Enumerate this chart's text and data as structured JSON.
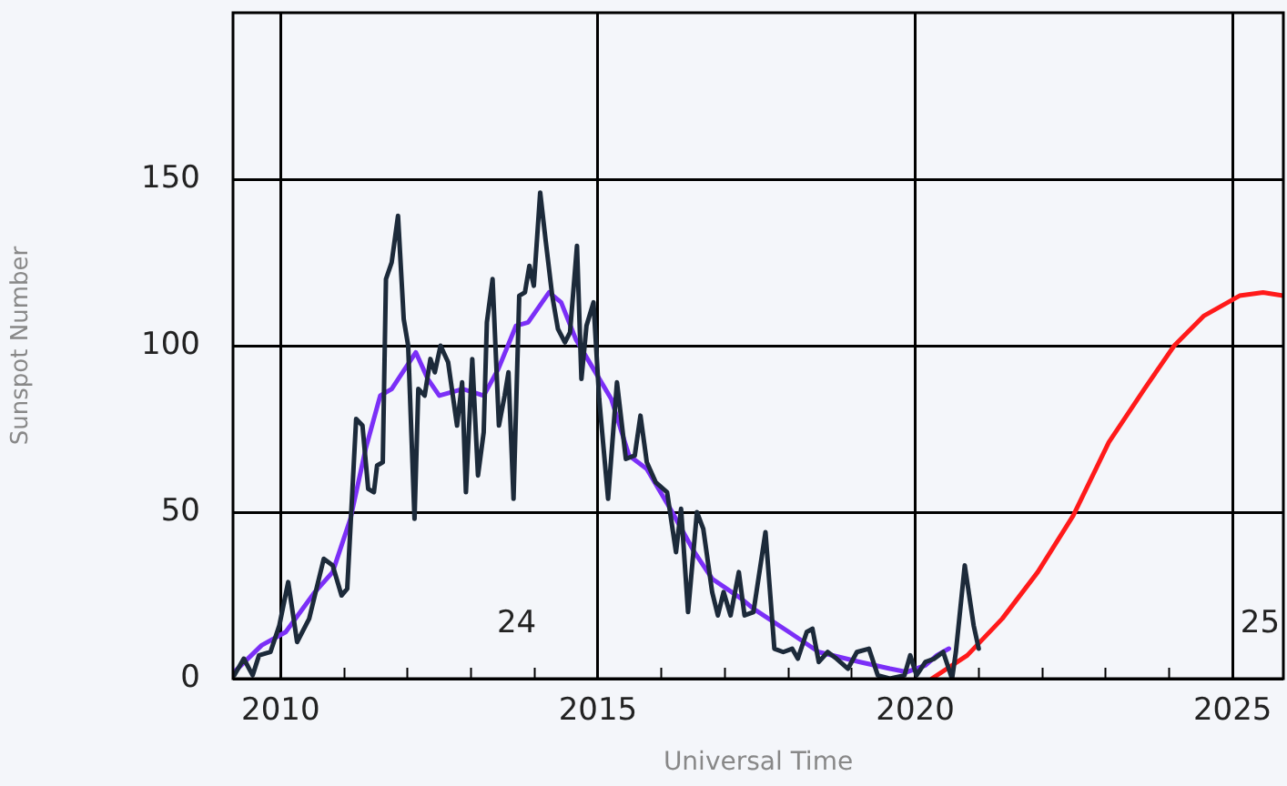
{
  "chart_data": {
    "type": "line",
    "xlabel": "Universal Time",
    "ylabel": "Sunspot Number",
    "xlim": [
      2009.25,
      2025.8
    ],
    "ylim": [
      0,
      200
    ],
    "xticks": [
      2010,
      {
        "value": 2011,
        "label": null
      },
      {
        "value": 2012,
        "label": null
      },
      {
        "value": 2013,
        "label": null
      },
      {
        "value": 2014,
        "label": null
      },
      2015,
      {
        "value": 2016,
        "label": null
      },
      {
        "value": 2017,
        "label": null
      },
      {
        "value": 2018,
        "label": null
      },
      {
        "value": 2019,
        "label": null
      },
      2020,
      {
        "value": 2021,
        "label": null
      },
      {
        "value": 2022,
        "label": null
      },
      {
        "value": 2023,
        "label": null
      },
      {
        "value": 2024,
        "label": null
      },
      2025
    ],
    "yticks": [
      0,
      50,
      100,
      150
    ],
    "grid": true,
    "marker": "none",
    "line_style": "solid",
    "annotations": [
      "24",
      "25"
    ],
    "series": [
      {
        "color": "#1c2a3a",
        "x": [
          2009.27,
          2009.42,
          2009.56,
          2009.66,
          2009.84,
          2009.98,
          2010.12,
          2010.26,
          2010.45,
          2010.68,
          2010.82,
          2010.96,
          2011.05,
          2011.19,
          2011.29,
          2011.38,
          2011.47,
          2011.52,
          2011.61,
          2011.66,
          2011.75,
          2011.85,
          2011.94,
          2012.01,
          2012.11,
          2012.17,
          2012.27,
          2012.36,
          2012.43,
          2012.52,
          2012.64,
          2012.78,
          2012.86,
          2012.92,
          2013.02,
          2013.11,
          2013.2,
          2013.25,
          2013.34,
          2013.44,
          2013.53,
          2013.59,
          2013.67,
          2013.76,
          2013.85,
          2013.92,
          2013.99,
          2014.09,
          2014.18,
          2014.28,
          2014.37,
          2014.48,
          2014.56,
          2014.67,
          2014.74,
          2014.82,
          2014.93,
          2015.02,
          2015.16,
          2015.3,
          2015.44,
          2015.58,
          2015.67,
          2015.77,
          2015.91,
          2016.09,
          2016.23,
          2016.31,
          2016.42,
          2016.56,
          2016.66,
          2016.8,
          2016.89,
          2016.98,
          2017.09,
          2017.22,
          2017.31,
          2017.45,
          2017.64,
          2017.78,
          2017.92,
          2018.06,
          2018.15,
          2018.29,
          2018.38,
          2018.48,
          2018.62,
          2018.76,
          2018.94,
          2019.08,
          2019.27,
          2019.41,
          2019.6,
          2019.83,
          2019.92,
          2020.02,
          2020.16,
          2020.3,
          2020.44,
          2020.58,
          2020.64,
          2020.78,
          2020.92,
          2021.0
        ],
        "values": [
          1,
          6,
          1,
          7,
          8,
          16,
          29,
          11,
          18,
          36,
          34,
          25,
          27,
          78,
          76,
          57,
          56,
          64,
          65,
          120,
          125,
          139,
          108,
          100,
          48,
          87,
          85,
          96,
          92,
          100,
          95,
          76,
          89,
          56,
          96,
          61,
          74,
          107,
          120,
          76,
          85,
          92,
          54,
          115,
          116,
          124,
          118,
          146,
          131,
          115,
          105,
          101,
          104,
          130,
          90,
          106,
          113,
          84,
          54,
          89,
          66,
          67,
          79,
          65,
          59,
          56,
          38,
          51,
          20,
          50,
          45,
          26,
          19,
          26,
          19,
          32,
          19,
          20,
          44,
          9,
          8,
          9,
          6,
          14,
          15,
          5,
          8,
          6,
          3,
          8,
          9,
          1,
          0,
          1,
          7,
          1,
          5,
          6,
          8,
          0,
          8,
          34,
          16,
          9
        ]
      },
      {
        "color": "#7b2ff7",
        "x": [
          2009.27,
          2009.7,
          2010.08,
          2010.54,
          2010.82,
          2011.1,
          2011.34,
          2011.57,
          2011.75,
          2012.13,
          2012.32,
          2012.5,
          2012.87,
          2013.2,
          2013.43,
          2013.71,
          2013.9,
          2014.23,
          2014.42,
          2014.65,
          2014.93,
          2015.21,
          2015.49,
          2015.77,
          2016.14,
          2016.52,
          2016.8,
          2017.26,
          2017.45,
          2018.01,
          2018.48,
          2019.13,
          2019.6,
          2019.87,
          2020.16,
          2020.34,
          2020.53
        ],
        "values": [
          2,
          10,
          14,
          26,
          32,
          48,
          69,
          85,
          87,
          98,
          90,
          85,
          87,
          85,
          93,
          106,
          107,
          116,
          113,
          102,
          93,
          84,
          67,
          63,
          51,
          38,
          30,
          24,
          21,
          14,
          8,
          5,
          3,
          2,
          4,
          7,
          9
        ]
      },
      {
        "color": "#ff1a1a",
        "x": [
          2020.26,
          2020.82,
          2021.37,
          2021.93,
          2022.49,
          2023.05,
          2023.61,
          2024.08,
          2024.55,
          2025.11,
          2025.48,
          2025.8
        ],
        "values": [
          0,
          7,
          18,
          32,
          49,
          71,
          87,
          100,
          109,
          115,
          116,
          115
        ]
      }
    ]
  }
}
